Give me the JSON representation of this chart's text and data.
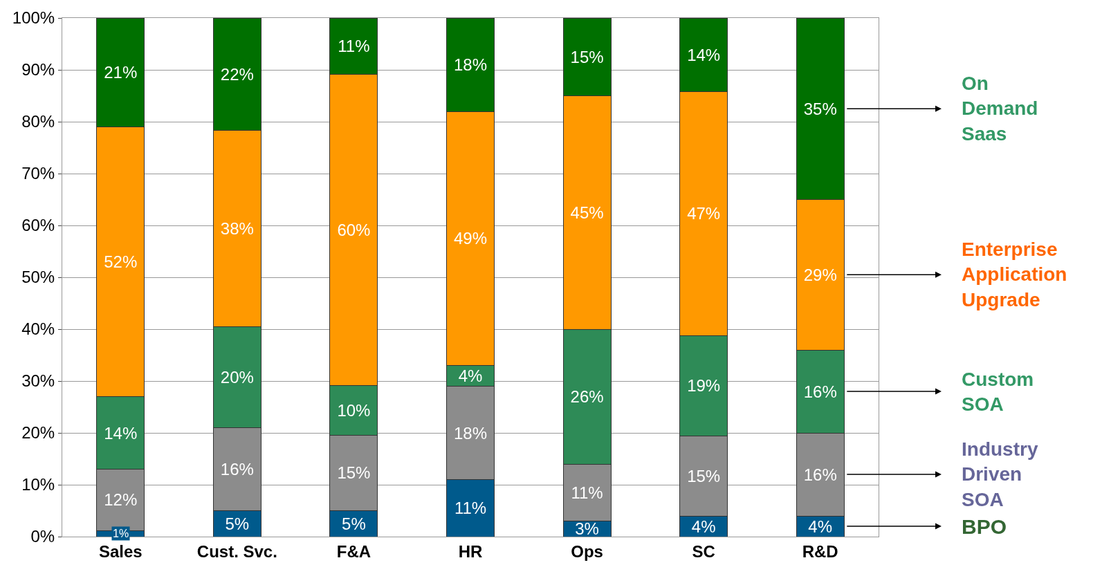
{
  "chart_data": {
    "type": "bar",
    "stacked": true,
    "legend": false,
    "grid": "y",
    "categories": [
      "Sales",
      "Cust. Svc.",
      "F&A",
      "HR",
      "Ops",
      "SC",
      "R&D"
    ],
    "ylim": [
      0,
      100
    ],
    "yticks": [
      {
        "value": 0,
        "label": "0%"
      },
      {
        "value": 10,
        "label": "10%"
      },
      {
        "value": 20,
        "label": "20%"
      },
      {
        "value": 30,
        "label": "30%"
      },
      {
        "value": 40,
        "label": "40%"
      },
      {
        "value": 50,
        "label": "50%"
      },
      {
        "value": 60,
        "label": "60%"
      },
      {
        "value": 70,
        "label": "70%"
      },
      {
        "value": 80,
        "label": "80%"
      },
      {
        "value": 90,
        "label": "90%"
      },
      {
        "value": 100,
        "label": "100%"
      }
    ],
    "series": [
      {
        "name": "BPO",
        "color": "#005a8c",
        "values": [
          1.2,
          5,
          5,
          11,
          3,
          4,
          4
        ],
        "value_labels": [
          "1%",
          "5%",
          "5%",
          "11%",
          "3%",
          "4%",
          "4%"
        ]
      },
      {
        "name": "Industry Driven SOA",
        "color": "#8c8c8c",
        "values": [
          11.8,
          16,
          14.6,
          18,
          11,
          15.4,
          16
        ],
        "value_labels": [
          "12%",
          "16%",
          "15%",
          "18%",
          "11%",
          "15%",
          "16%"
        ]
      },
      {
        "name": "Custom SOA",
        "color": "#2e8b57",
        "values": [
          14,
          19.5,
          9.6,
          4,
          26,
          19.4,
          16
        ],
        "value_labels": [
          "14%",
          "20%",
          "10%",
          "4%",
          "26%",
          "19%",
          "16%"
        ]
      },
      {
        "name": "Enterprise Application Upgrade",
        "color": "#ff9900",
        "values": [
          52,
          37.8,
          60,
          49,
          45,
          47,
          29
        ],
        "value_labels": [
          "52%",
          "38%",
          "60%",
          "49%",
          "45%",
          "47%",
          "29%"
        ]
      },
      {
        "name": "On Demand Saas",
        "color": "#007000",
        "values": [
          21,
          21.7,
          10.8,
          18,
          15,
          14.2,
          35
        ],
        "value_labels": [
          "21%",
          "22%",
          "11%",
          "18%",
          "15%",
          "14%",
          "35%"
        ]
      }
    ]
  }
}
